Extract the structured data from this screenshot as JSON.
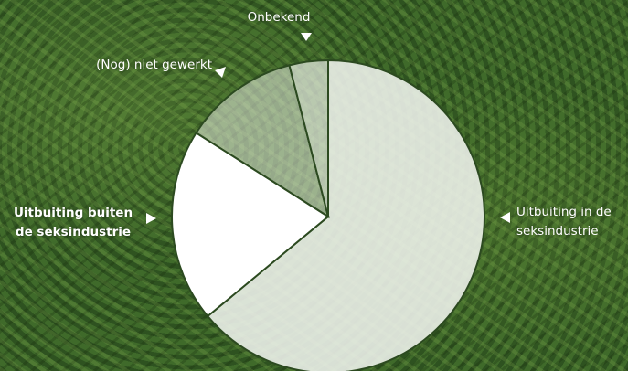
{
  "chart_data": {
    "type": "pie",
    "categories": [
      "Uitbuiting in de seksindustrie",
      "Uitbuiting buiten de seksindustrie",
      "(Nog) niet gewerkt",
      "Onbekend"
    ],
    "values": [
      64,
      20,
      12,
      4
    ],
    "colors": [
      "rgba(240,244,238,0.88)",
      "#ffffff",
      "rgba(225,232,220,0.55)",
      "rgba(230,236,226,0.72)"
    ],
    "edge_color": "#2c4a20"
  }
}
